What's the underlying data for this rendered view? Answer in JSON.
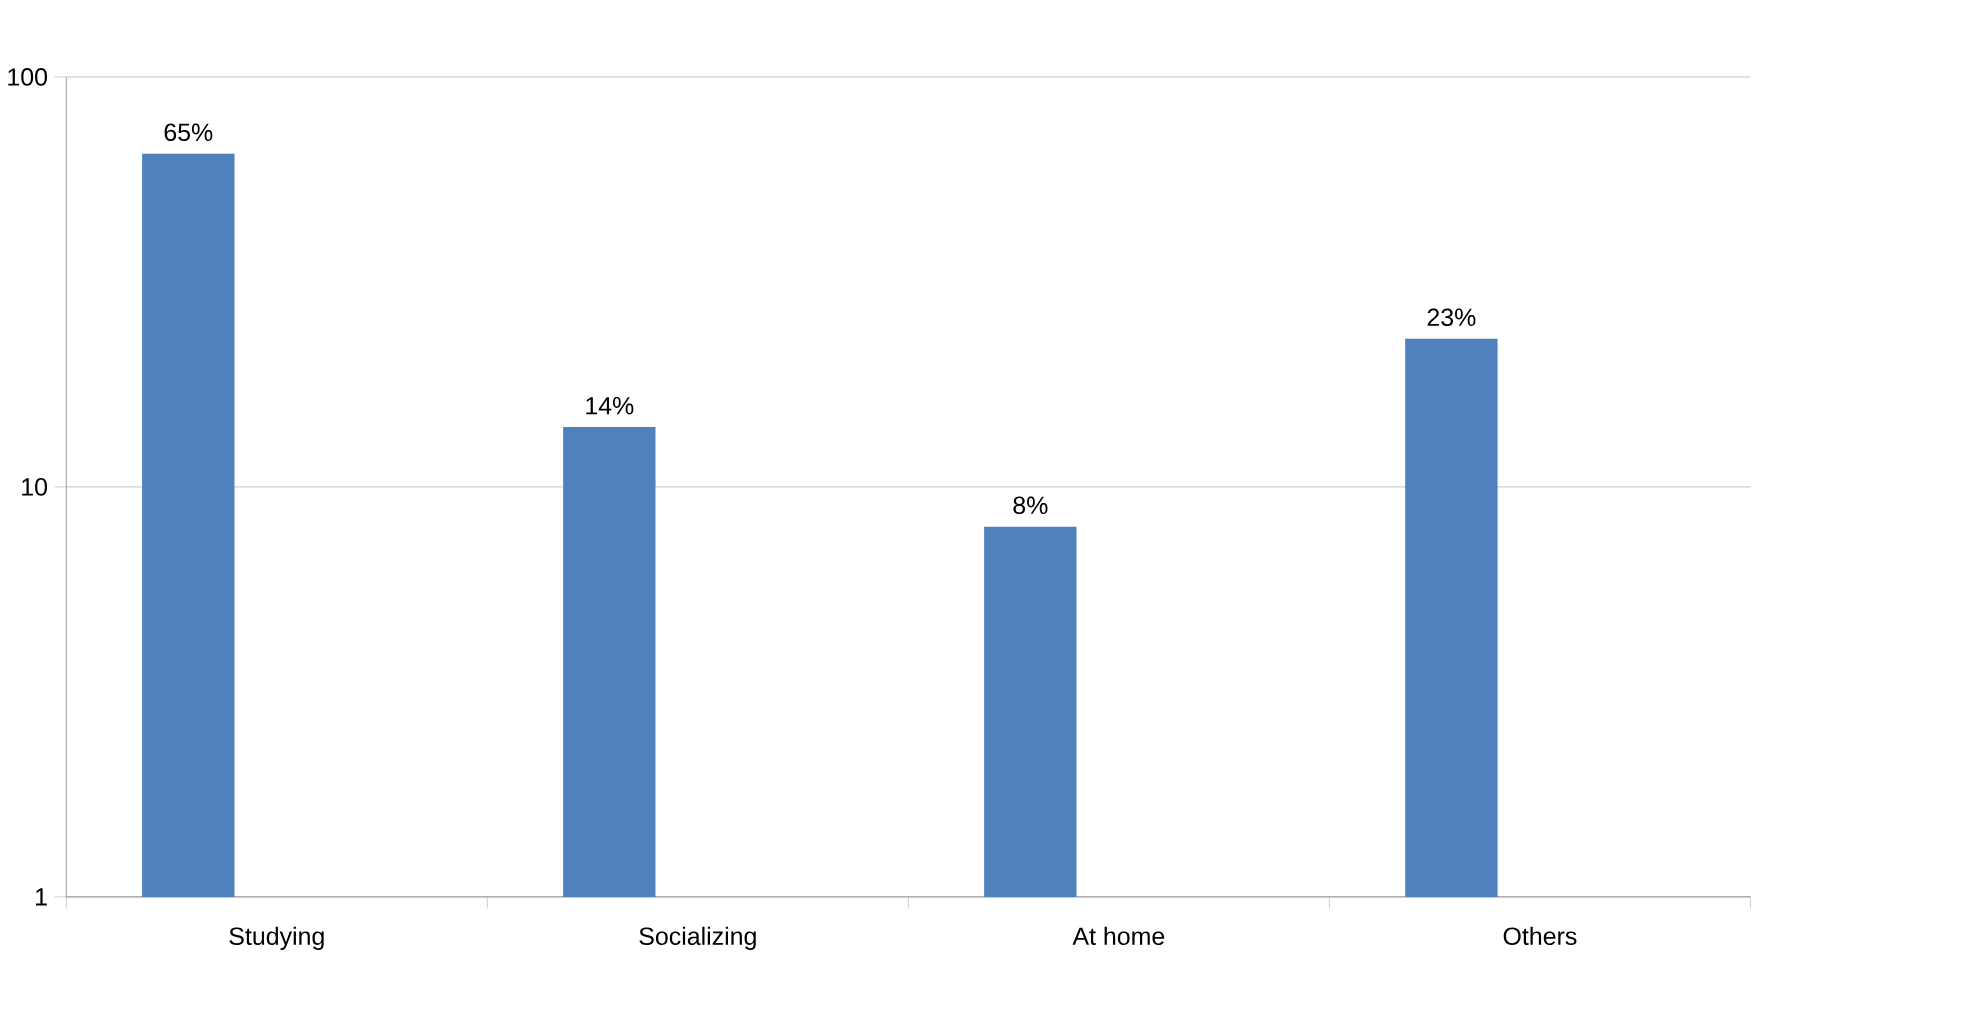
{
  "chart_data": {
    "type": "bar",
    "categories": [
      "Studying",
      "Socializing",
      "At home",
      "Others"
    ],
    "values": [
      65,
      14,
      8,
      23
    ],
    "value_labels": [
      "65%",
      "14%",
      "8%",
      "23%"
    ],
    "color": "#4f81bd",
    "log": "y",
    "ylim": [
      1,
      100
    ],
    "yticks": [
      1,
      10,
      100
    ],
    "grid": "y"
  }
}
